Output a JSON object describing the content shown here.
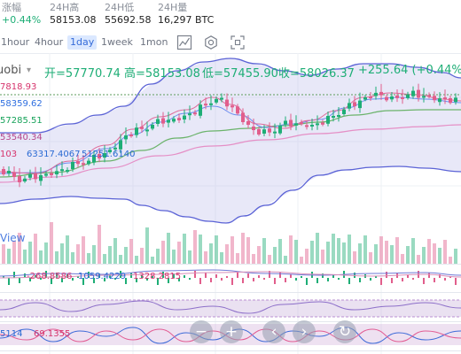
{
  "stats": [
    {
      "label": "涨幅",
      "value": "+0.44%",
      "up": true
    },
    {
      "label": "24H高",
      "value": "58153.08",
      "up": false
    },
    {
      "label": "24H低",
      "value": "55692.58",
      "up": false
    },
    {
      "label": "24H量",
      "value": "16,297 BTC",
      "up": false
    }
  ],
  "timeframes": [
    "1hour",
    "4hour",
    "1day",
    "1week",
    "1mon"
  ],
  "active_timeframe": "1day",
  "tools": [
    {
      "icon": "line-chart-icon"
    },
    {
      "icon": "settings-icon"
    },
    {
      "icon": "fullscreen-icon"
    }
  ],
  "ohlc": {
    "source": "uobi",
    "open": "开=57770.74",
    "high": "高=58153.08",
    "low": "低=57455.90",
    "close": "收=58026.37",
    "change": "+255.64 (+0.44%)"
  },
  "ma_labels": [
    {
      "text": "7818.93",
      "color": "#d6336c"
    },
    {
      "text": "58359.62",
      "color": "#2f6fe0"
    },
    {
      "text": "57285.51",
      "color": "#17a35a"
    },
    {
      "text": "53540.34",
      "color": "#b5468c"
    },
    {
      "text": "103",
      "color": "#d6336c"
    }
  ],
  "vol_values": [
    {
      "text": "63317.4067",
      "color": "#2a6ad3"
    },
    {
      "text": "51251.6140",
      "color": "#2a6ad3"
    }
  ],
  "vol_label": "View",
  "macd_values": [
    {
      "text": "-268.8586",
      "color": "#d6336c"
    },
    {
      "text": "1059.4229",
      "color": "#2a6ad3"
    },
    {
      "text": "1328.2815",
      "color": "#d6336c"
    }
  ],
  "kdj_values": [
    {
      "text": "5114",
      "color": "#2a6ad3"
    },
    {
      "text": "69.1355",
      "color": "#d6336c"
    }
  ],
  "zoom_buttons": [
    {
      "label": "−",
      "name": "zoom-out-button"
    },
    {
      "label": "+",
      "name": "zoom-in-button"
    },
    {
      "label": "‹",
      "name": "scroll-left-button"
    },
    {
      "label": "›",
      "name": "scroll-right-button"
    },
    {
      "label": "↻",
      "name": "reset-button"
    }
  ],
  "colors": {
    "up": "#1eae76",
    "down": "#e15e8c",
    "active_bg": "#dbe8ff"
  }
}
